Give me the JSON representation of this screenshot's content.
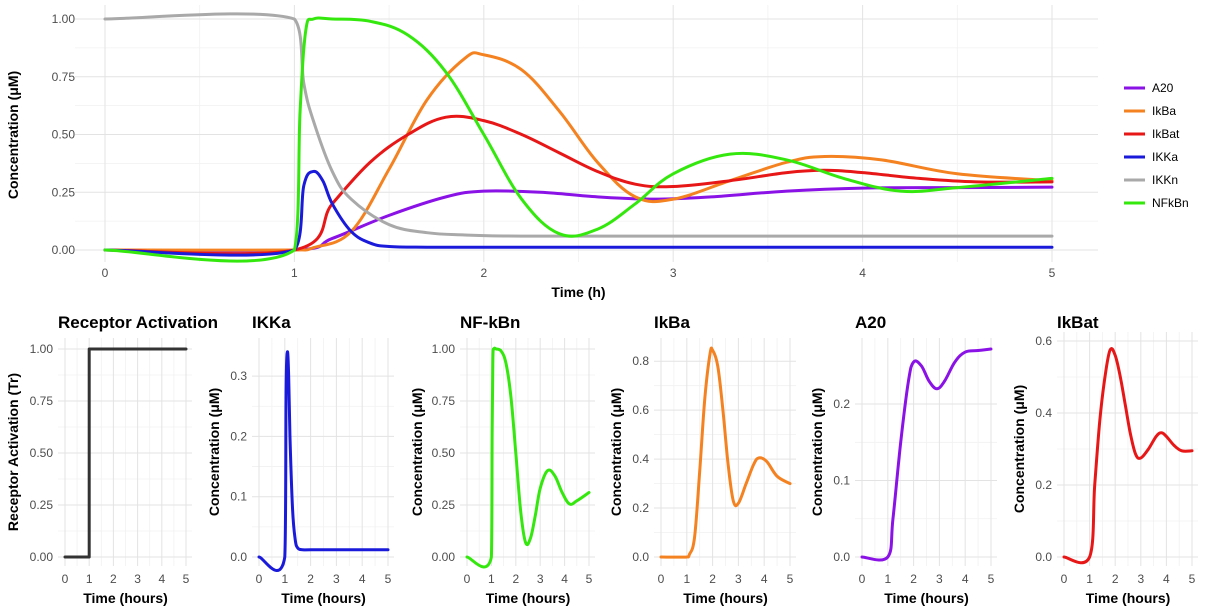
{
  "chart_data": [
    {
      "type": "line",
      "title": "",
      "xlabel": "Time (h)",
      "ylabel": "Concentration (μM)",
      "xlim": [
        0,
        5
      ],
      "ylim": [
        0,
        1
      ],
      "x_ticks": [
        "0",
        "1",
        "2",
        "3",
        "4",
        "5"
      ],
      "y_ticks": [
        "0.00",
        "0.25",
        "0.50",
        "0.75",
        "1.00"
      ],
      "grid": true,
      "legend_position": "right",
      "series": [
        {
          "name": "A20",
          "color": "#8b12e6",
          "x": [
            0,
            1,
            1.2,
            1.5,
            1.8,
            2.0,
            2.3,
            2.6,
            2.9,
            3.2,
            3.6,
            4.0,
            4.5,
            5.0
          ],
          "y": [
            0,
            0,
            0.05,
            0.15,
            0.23,
            0.255,
            0.25,
            0.23,
            0.22,
            0.23,
            0.255,
            0.268,
            0.27,
            0.272
          ]
        },
        {
          "name": "IkBa",
          "color": "#f58220",
          "x": [
            0,
            1,
            1.1,
            1.3,
            1.5,
            1.7,
            1.9,
            2.0,
            2.2,
            2.4,
            2.6,
            2.8,
            3.0,
            3.3,
            3.6,
            3.8,
            4.1,
            4.5,
            5.0
          ],
          "y": [
            0,
            0,
            0.01,
            0.08,
            0.35,
            0.65,
            0.83,
            0.845,
            0.78,
            0.6,
            0.38,
            0.23,
            0.22,
            0.3,
            0.38,
            0.405,
            0.39,
            0.33,
            0.3
          ]
        },
        {
          "name": "IkBat",
          "color": "#e81717",
          "x": [
            0,
            1,
            1.2,
            1.4,
            1.6,
            1.8,
            2.0,
            2.2,
            2.4,
            2.6,
            2.8,
            3.0,
            3.3,
            3.6,
            3.8,
            4.0,
            4.3,
            4.6,
            5.0
          ],
          "y": [
            0,
            0,
            0.2,
            0.38,
            0.5,
            0.575,
            0.56,
            0.5,
            0.42,
            0.34,
            0.285,
            0.275,
            0.3,
            0.335,
            0.345,
            0.335,
            0.31,
            0.295,
            0.295
          ]
        },
        {
          "name": "IKKa",
          "color": "#1a1adb",
          "x": [
            0,
            1,
            1.05,
            1.1,
            1.15,
            1.2,
            1.3,
            1.4,
            1.5,
            1.7,
            2.0,
            3.0,
            4.0,
            5.0
          ],
          "y": [
            0,
            0,
            0.28,
            0.34,
            0.3,
            0.2,
            0.08,
            0.03,
            0.015,
            0.012,
            0.012,
            0.012,
            0.012,
            0.012
          ]
        },
        {
          "name": "IKKn",
          "color": "#a9a9a9",
          "x": [
            0,
            1,
            1.05,
            1.1,
            1.2,
            1.3,
            1.5,
            1.7,
            1.9,
            2.2,
            3.0,
            4.0,
            5.0
          ],
          "y": [
            1.0,
            1.0,
            0.72,
            0.56,
            0.34,
            0.22,
            0.11,
            0.075,
            0.065,
            0.06,
            0.06,
            0.06,
            0.06
          ]
        },
        {
          "name": "NFkBn",
          "color": "#34e80e",
          "x": [
            0,
            1,
            1.03,
            1.06,
            1.1,
            1.2,
            1.4,
            1.6,
            1.8,
            2.0,
            2.2,
            2.4,
            2.6,
            2.8,
            3.0,
            3.3,
            3.6,
            3.9,
            4.2,
            4.5,
            5.0
          ],
          "y": [
            0,
            0,
            0.6,
            0.95,
            1.0,
            1.0,
            0.99,
            0.93,
            0.77,
            0.5,
            0.22,
            0.07,
            0.09,
            0.2,
            0.33,
            0.415,
            0.39,
            0.31,
            0.255,
            0.27,
            0.31
          ]
        }
      ]
    },
    {
      "type": "line",
      "title": "Receptor Activation",
      "xlabel": "Time (hours)",
      "ylabel": "Receptor Activation (Tr)",
      "xlim": [
        0,
        5
      ],
      "ylim": [
        0,
        1
      ],
      "x_ticks": [
        "0",
        "1",
        "2",
        "3",
        "4",
        "5"
      ],
      "y_ticks": [
        "0.00",
        "0.25",
        "0.50",
        "0.75",
        "1.00"
      ],
      "series": [
        {
          "color": "#333333",
          "x": [
            0,
            1,
            1,
            5
          ],
          "y": [
            0,
            0,
            1,
            1
          ]
        }
      ]
    },
    {
      "type": "line",
      "title": "IKKa",
      "xlabel": "Time (hours)",
      "ylabel": "Concentration (μM)",
      "xlim": [
        0,
        5
      ],
      "ylim": [
        0,
        0.345
      ],
      "x_ticks": [
        "0",
        "1",
        "2",
        "3",
        "4",
        "5"
      ],
      "y_ticks": [
        "0.0",
        "0.1",
        "0.2",
        "0.3"
      ],
      "series": [
        {
          "color": "#1a1adb",
          "x": [
            0,
            1,
            1.05,
            1.1,
            1.15,
            1.2,
            1.3,
            1.4,
            1.5,
            1.7,
            2.0,
            3.0,
            4.0,
            5.0
          ],
          "y": [
            0,
            0,
            0.28,
            0.34,
            0.3,
            0.2,
            0.08,
            0.03,
            0.015,
            0.012,
            0.012,
            0.012,
            0.012,
            0.012
          ]
        }
      ]
    },
    {
      "type": "line",
      "title": "NF-kBn",
      "xlabel": "Time (hours)",
      "ylabel": "Concentration (μM)",
      "xlim": [
        0,
        5
      ],
      "ylim": [
        0,
        1
      ],
      "x_ticks": [
        "0",
        "1",
        "2",
        "3",
        "4",
        "5"
      ],
      "y_ticks": [
        "0.00",
        "0.25",
        "0.50",
        "0.75",
        "1.00"
      ],
      "series": [
        {
          "color": "#34e80e",
          "x": [
            0,
            1,
            1.03,
            1.06,
            1.1,
            1.2,
            1.4,
            1.6,
            1.8,
            2.0,
            2.2,
            2.4,
            2.6,
            2.8,
            3.0,
            3.3,
            3.6,
            3.9,
            4.2,
            4.5,
            5.0
          ],
          "y": [
            0,
            0,
            0.6,
            0.95,
            1.0,
            1.0,
            0.99,
            0.93,
            0.77,
            0.5,
            0.22,
            0.07,
            0.09,
            0.2,
            0.33,
            0.415,
            0.39,
            0.31,
            0.255,
            0.27,
            0.31
          ]
        }
      ]
    },
    {
      "type": "line",
      "title": "IkBa",
      "xlabel": "Time (hours)",
      "ylabel": "Concentration (μM)",
      "xlim": [
        0,
        5
      ],
      "ylim": [
        0,
        0.85
      ],
      "x_ticks": [
        "0",
        "1",
        "2",
        "3",
        "4",
        "5"
      ],
      "y_ticks": [
        "0.0",
        "0.2",
        "0.4",
        "0.6",
        "0.8"
      ],
      "series": [
        {
          "color": "#f58220",
          "x": [
            0,
            1,
            1.1,
            1.3,
            1.5,
            1.7,
            1.9,
            2.0,
            2.2,
            2.4,
            2.6,
            2.8,
            3.0,
            3.3,
            3.6,
            3.8,
            4.1,
            4.5,
            5.0
          ],
          "y": [
            0,
            0,
            0.01,
            0.08,
            0.35,
            0.65,
            0.83,
            0.845,
            0.78,
            0.6,
            0.38,
            0.23,
            0.22,
            0.3,
            0.38,
            0.405,
            0.39,
            0.33,
            0.3
          ]
        }
      ]
    },
    {
      "type": "line",
      "title": "A20",
      "xlabel": "Time (hours)",
      "ylabel": "Concentration (μM)",
      "xlim": [
        0,
        5
      ],
      "ylim": [
        0,
        0.272
      ],
      "x_ticks": [
        "0",
        "1",
        "2",
        "3",
        "4",
        "5"
      ],
      "y_ticks": [
        "0.0",
        "0.1",
        "0.2"
      ],
      "series": [
        {
          "color": "#8b12e6",
          "x": [
            0,
            1,
            1.2,
            1.5,
            1.8,
            2.0,
            2.3,
            2.6,
            2.9,
            3.2,
            3.6,
            4.0,
            4.5,
            5.0
          ],
          "y": [
            0,
            0,
            0.05,
            0.15,
            0.23,
            0.255,
            0.25,
            0.23,
            0.22,
            0.23,
            0.255,
            0.268,
            0.27,
            0.272
          ]
        }
      ]
    },
    {
      "type": "line",
      "title": "IkBat",
      "xlabel": "Time (hours)",
      "ylabel": "Concentration (μM)",
      "xlim": [
        0,
        5
      ],
      "ylim": [
        0,
        0.6
      ],
      "x_ticks": [
        "0",
        "1",
        "2",
        "3",
        "4",
        "5"
      ],
      "y_ticks": [
        "0.0",
        "0.2",
        "0.4",
        "0.6"
      ],
      "series": [
        {
          "color": "#e81717",
          "x": [
            0,
            1,
            1.2,
            1.4,
            1.6,
            1.8,
            2.0,
            2.2,
            2.4,
            2.6,
            2.8,
            3.0,
            3.3,
            3.6,
            3.8,
            4.0,
            4.3,
            4.6,
            5.0
          ],
          "y": [
            0,
            0,
            0.2,
            0.38,
            0.5,
            0.575,
            0.56,
            0.5,
            0.42,
            0.34,
            0.285,
            0.275,
            0.3,
            0.335,
            0.345,
            0.335,
            0.31,
            0.295,
            0.295
          ]
        }
      ]
    }
  ]
}
